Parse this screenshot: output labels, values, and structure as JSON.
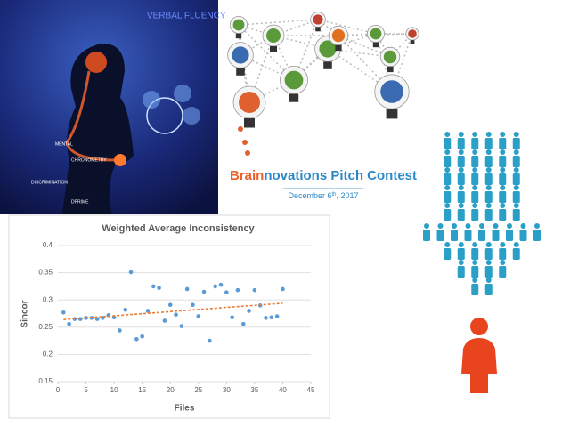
{
  "image_labels": [
    "VERBAL FLUENCY",
    "MENTAL",
    "CHRONOMETRY",
    "DISCRIMINATION",
    "DPRIME"
  ],
  "banner": {
    "title_highlight": "Brain",
    "title_rest": "novations Pitch Contest",
    "date": "December 6",
    "date_suffix": "th",
    "date_year": ", 2017"
  },
  "chart_data": {
    "type": "scatter",
    "title": "Weighted Average Inconsistency",
    "x_label": "Files",
    "y_label": "Sincor",
    "xlim": [
      0,
      45
    ],
    "xticks": [
      0,
      5,
      10,
      15,
      20,
      25,
      30,
      35,
      40,
      45
    ],
    "ylim": [
      0.15,
      0.4
    ],
    "yticks": [
      0.15,
      0.2,
      0.25,
      0.3,
      0.35,
      0.4
    ],
    "series": [
      {
        "color": "#5b9bd5",
        "x": [
          1,
          2,
          3,
          4,
          5,
          6,
          7,
          8,
          9,
          10,
          11,
          12,
          13,
          14,
          15,
          16,
          17,
          18,
          19,
          20,
          21,
          22,
          23,
          24,
          25,
          26,
          27,
          28,
          29,
          30,
          31,
          32,
          33,
          34,
          35,
          36,
          37,
          38,
          39,
          40
        ],
        "values": [
          0.277,
          0.256,
          0.265,
          0.265,
          0.267,
          0.267,
          0.265,
          0.267,
          0.272,
          0.268,
          0.244,
          0.282,
          0.351,
          0.228,
          0.233,
          0.28,
          0.325,
          0.322,
          0.262,
          0.291,
          0.273,
          0.252,
          0.32,
          0.291,
          0.27,
          0.315,
          0.225,
          0.325,
          0.328,
          0.314,
          0.268,
          0.318,
          0.256,
          0.28,
          0.318,
          0.29,
          0.267,
          0.268,
          0.27,
          0.32
        ]
      }
    ],
    "trendline": {
      "color": "#ed7d31",
      "x": [
        1,
        40
      ],
      "values": [
        0.264,
        0.294
      ]
    }
  }
}
